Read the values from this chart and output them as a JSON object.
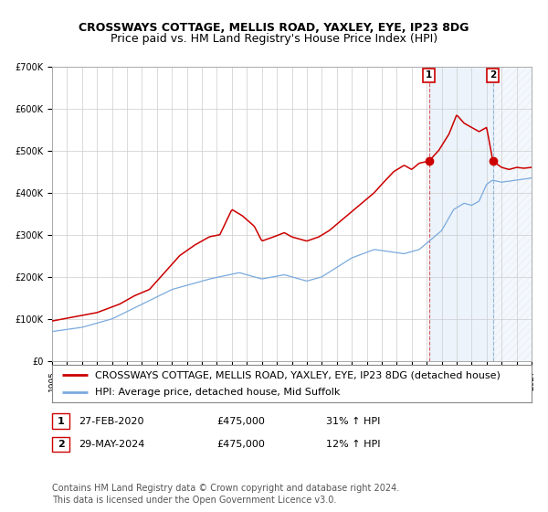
{
  "title": "CROSSWAYS COTTAGE, MELLIS ROAD, YAXLEY, EYE, IP23 8DG",
  "subtitle": "Price paid vs. HM Land Registry's House Price Index (HPI)",
  "ylim": [
    0,
    700000
  ],
  "yticks": [
    0,
    100000,
    200000,
    300000,
    400000,
    500000,
    600000,
    700000
  ],
  "ytick_labels": [
    "£0",
    "£100K",
    "£200K",
    "£300K",
    "£400K",
    "£500K",
    "£600K",
    "£700K"
  ],
  "xmin": 1995,
  "xmax": 2027,
  "marker1_year": 2020.15,
  "marker1_value": 475000,
  "marker2_year": 2024.42,
  "marker2_value": 475000,
  "marker1_label": "1",
  "marker2_label": "2",
  "shade_start": 2020.15,
  "shade_end": 2024.42,
  "hatch_end": 2027,
  "legend_line1": "CROSSWAYS COTTAGE, MELLIS ROAD, YAXLEY, EYE, IP23 8DG (detached house)",
  "legend_line2": "HPI: Average price, detached house, Mid Suffolk",
  "table_row1": [
    "1",
    "27-FEB-2020",
    "£475,000",
    "31% ↑ HPI"
  ],
  "table_row2": [
    "2",
    "29-MAY-2024",
    "£475,000",
    "12% ↑ HPI"
  ],
  "footer": "Contains HM Land Registry data © Crown copyright and database right 2024.\nThis data is licensed under the Open Government Licence v3.0.",
  "red_color": "#cc0000",
  "blue_color": "#7aaadd",
  "shade_color": "#cce0f5",
  "bg_color": "#ffffff",
  "grid_color": "#cccccc",
  "title_fontsize": 9,
  "subtitle_fontsize": 9,
  "tick_fontsize": 7,
  "legend_fontsize": 8,
  "table_fontsize": 8,
  "footer_fontsize": 7
}
